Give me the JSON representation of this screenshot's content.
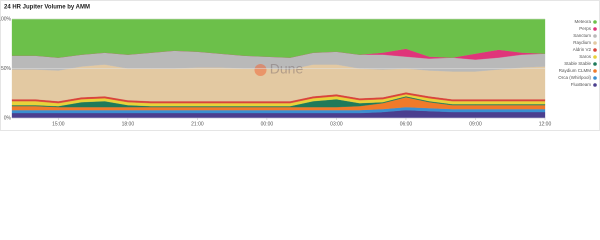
{
  "chart_data": {
    "type": "stacked_area_percent",
    "title": "24 HR Jupiter Volume by AMM",
    "watermark": "Dune",
    "categories": [
      null,
      null,
      "15:00",
      null,
      null,
      "18:00",
      null,
      null,
      "21:00",
      null,
      null,
      "00:00",
      null,
      null,
      "03:00",
      null,
      null,
      "06:00",
      null,
      null,
      "09:00",
      null,
      null,
      "12:00"
    ],
    "ylim": [
      0,
      100
    ],
    "yticks": [
      {
        "value": 0,
        "label": "0%"
      },
      {
        "value": 50,
        "label": "50%"
      },
      {
        "value": 100,
        "label": "100%"
      }
    ],
    "grid": true,
    "legend": "right",
    "series": [
      {
        "name": "FluxBeam",
        "color": "#4b3f8f",
        "values": [
          5,
          5,
          5,
          5,
          5,
          5,
          5,
          5,
          5,
          5,
          5,
          5,
          5,
          5,
          5,
          5,
          6,
          8,
          7,
          6,
          6,
          6,
          6,
          6
        ]
      },
      {
        "name": "Orca (Whirlpool)",
        "color": "#3b8fd0",
        "values": [
          3,
          3,
          3,
          3,
          3,
          3,
          3,
          3,
          3,
          3,
          3,
          3,
          3,
          3,
          3,
          3,
          3,
          3,
          3,
          3,
          3,
          3,
          3,
          3
        ]
      },
      {
        "name": "Raydium CLMM",
        "color": "#f07a2a",
        "values": [
          4,
          4,
          3,
          3,
          3,
          3,
          3,
          3,
          3,
          3,
          3,
          3,
          3,
          3,
          3,
          4,
          6,
          10,
          6,
          4,
          4,
          4,
          4,
          4
        ]
      },
      {
        "name": "Stable Stable",
        "color": "#1f7a5a",
        "values": [
          1,
          1,
          1,
          5,
          6,
          2,
          1,
          1,
          1,
          1,
          1,
          1,
          1,
          6,
          8,
          3,
          1,
          1,
          1,
          1,
          1,
          1,
          1,
          1
        ]
      },
      {
        "name": "Saros",
        "color": "#e8d23a",
        "values": [
          4,
          4,
          3,
          3,
          3,
          3,
          3,
          3,
          3,
          3,
          3,
          3,
          3,
          3,
          3,
          3,
          3,
          2,
          3,
          3,
          3,
          3,
          3,
          3
        ]
      },
      {
        "name": "Aldrin V2",
        "color": "#d9443b",
        "values": [
          2,
          2,
          2,
          2,
          2,
          2,
          2,
          2,
          2,
          2,
          2,
          2,
          2,
          2,
          2,
          2,
          2,
          2,
          2,
          2,
          2,
          2,
          2,
          2
        ]
      },
      {
        "name": "Raydium",
        "color": "#e3c9a2",
        "values": [
          30,
          30,
          31,
          31,
          32,
          32,
          33,
          33,
          34,
          34,
          33,
          33,
          32,
          32,
          30,
          30,
          28,
          24,
          26,
          28,
          28,
          30,
          32,
          33
        ]
      },
      {
        "name": "Sanctum",
        "color": "#b9b9b9",
        "values": [
          14,
          14,
          13,
          12,
          12,
          14,
          16,
          18,
          16,
          14,
          13,
          12,
          12,
          12,
          13,
          14,
          15,
          12,
          12,
          14,
          12,
          12,
          13,
          13
        ]
      },
      {
        "name": "Perps",
        "color": "#e0357a",
        "values": [
          0,
          0,
          0,
          0,
          0,
          0,
          0,
          0,
          0,
          0,
          0,
          0,
          0,
          0,
          0,
          0,
          2,
          8,
          2,
          0,
          6,
          8,
          2,
          0
        ]
      },
      {
        "name": "Meteora",
        "color": "#6cc04a",
        "values": [
          37,
          37,
          39,
          36,
          34,
          36,
          34,
          32,
          33,
          35,
          37,
          38,
          39,
          34,
          33,
          36,
          34,
          30,
          38,
          39,
          35,
          31,
          34,
          35
        ]
      }
    ]
  }
}
